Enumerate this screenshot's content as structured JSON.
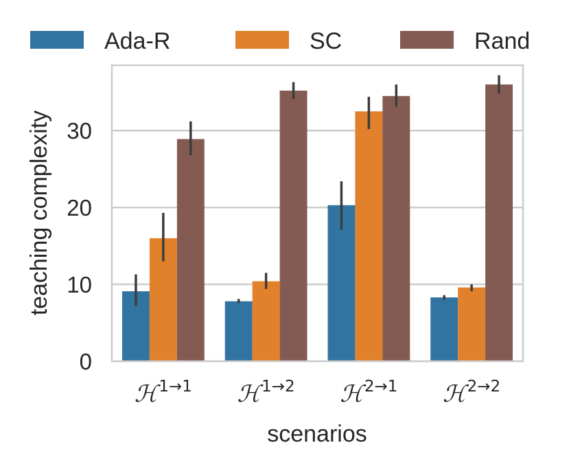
{
  "chart_data": {
    "type": "bar",
    "title": "",
    "xlabel": "scenarios",
    "ylabel": "teaching complexity",
    "ylim": [
      0,
      38.5
    ],
    "yticks": [
      0,
      10,
      20,
      30
    ],
    "grid": "horizontal",
    "legend_position": "top",
    "categories": [
      "ℋ1→1",
      "ℋ1→2",
      "ℋ2→1",
      "ℋ2→2"
    ],
    "category_parts": [
      {
        "base": "ℋ",
        "sup": "1→1"
      },
      {
        "base": "ℋ",
        "sup": "1→2"
      },
      {
        "base": "ℋ",
        "sup": "2→1"
      },
      {
        "base": "ℋ",
        "sup": "2→2"
      }
    ],
    "series": [
      {
        "name": "Ada-R",
        "color": "#3274a1",
        "values": [
          9.1,
          7.8,
          20.3,
          8.3
        ],
        "err_low": [
          7.2,
          7.6,
          17.1,
          8.0
        ],
        "err_high": [
          11.3,
          8.1,
          23.4,
          8.6
        ]
      },
      {
        "name": "SC",
        "color": "#e1812c",
        "values": [
          16.0,
          10.4,
          32.5,
          9.6
        ],
        "err_low": [
          13.0,
          9.4,
          30.2,
          9.1
        ],
        "err_high": [
          19.3,
          11.5,
          34.4,
          10.0
        ]
      },
      {
        "name": "Rand",
        "color": "#845b53",
        "values": [
          28.9,
          35.2,
          34.5,
          36.0
        ],
        "err_low": [
          26.8,
          34.1,
          33.1,
          34.8
        ],
        "err_high": [
          31.2,
          36.3,
          36.0,
          37.2
        ]
      }
    ]
  }
}
